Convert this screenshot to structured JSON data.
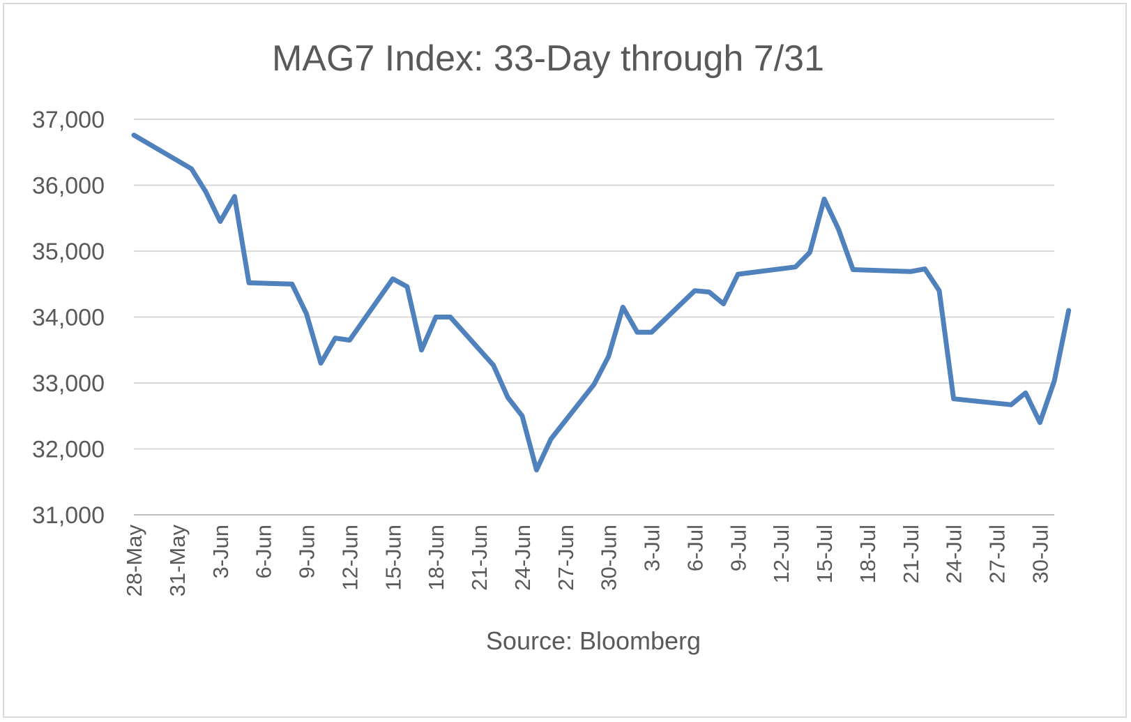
{
  "chart_data": {
    "type": "line",
    "title": "MAG7 Index: 33-Day through 7/31",
    "xlabel": "Source: Bloomberg",
    "ylabel": "",
    "ylim": [
      31000,
      37000
    ],
    "yticks": [
      31000,
      32000,
      33000,
      34000,
      35000,
      36000,
      37000
    ],
    "ytick_labels": [
      "31,000",
      "32,000",
      "33,000",
      "34,000",
      "35,000",
      "36,000",
      "37,000"
    ],
    "xlim": [
      "2024-05-28",
      "2024-07-31"
    ],
    "xtick_dates": [
      "2024-05-28",
      "2024-05-31",
      "2024-06-03",
      "2024-06-06",
      "2024-06-09",
      "2024-06-12",
      "2024-06-15",
      "2024-06-18",
      "2024-06-21",
      "2024-06-24",
      "2024-06-27",
      "2024-06-30",
      "2024-07-03",
      "2024-07-06",
      "2024-07-09",
      "2024-07-12",
      "2024-07-15",
      "2024-07-18",
      "2024-07-21",
      "2024-07-24",
      "2024-07-27",
      "2024-07-30"
    ],
    "xtick_labels": [
      "28-May",
      "31-May",
      "3-Jun",
      "6-Jun",
      "9-Jun",
      "12-Jun",
      "15-Jun",
      "18-Jun",
      "21-Jun",
      "24-Jun",
      "27-Jun",
      "30-Jun",
      "3-Jul",
      "6-Jul",
      "9-Jul",
      "12-Jul",
      "15-Jul",
      "18-Jul",
      "21-Jul",
      "24-Jul",
      "27-Jul",
      "30-Jul"
    ],
    "grid": true,
    "legend": "none",
    "series": [
      {
        "color": "#4f81bd",
        "x": [
          "2024-05-28",
          "2024-06-01",
          "2024-06-02",
          "2024-06-03",
          "2024-06-04",
          "2024-06-05",
          "2024-06-08",
          "2024-06-09",
          "2024-06-10",
          "2024-06-11",
          "2024-06-12",
          "2024-06-15",
          "2024-06-16",
          "2024-06-17",
          "2024-06-18",
          "2024-06-19",
          "2024-06-22",
          "2024-06-23",
          "2024-06-24",
          "2024-06-25",
          "2024-06-26",
          "2024-06-29",
          "2024-06-30",
          "2024-07-01",
          "2024-07-02",
          "2024-07-03",
          "2024-07-06",
          "2024-07-07",
          "2024-07-08",
          "2024-07-09",
          "2024-07-13",
          "2024-07-14",
          "2024-07-15",
          "2024-07-16",
          "2024-07-17",
          "2024-07-21",
          "2024-07-22",
          "2024-07-23",
          "2024-07-24",
          "2024-07-28",
          "2024-07-29",
          "2024-07-30",
          "2024-07-31",
          "2024-08-01"
        ],
        "y": [
          36760,
          36250,
          35900,
          35450,
          35830,
          34520,
          34500,
          34050,
          33300,
          33680,
          33650,
          34580,
          34460,
          33500,
          34000,
          34000,
          33270,
          32780,
          32500,
          31680,
          32150,
          32980,
          33400,
          34150,
          33770,
          33770,
          34400,
          34380,
          34200,
          34650,
          34760,
          34980,
          35790,
          35330,
          34720,
          34690,
          34730,
          34400,
          32760,
          32670,
          32850,
          32400,
          33030,
          34100
        ]
      }
    ]
  }
}
